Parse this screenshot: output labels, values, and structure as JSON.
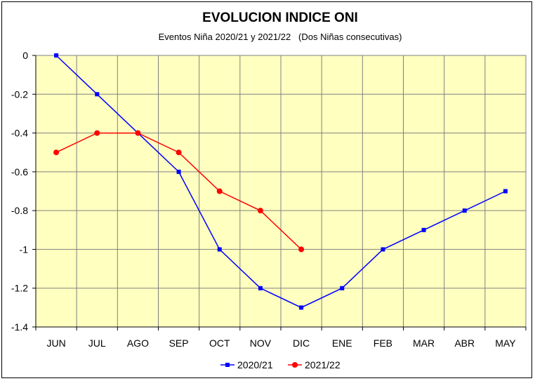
{
  "chart_data": {
    "type": "line",
    "title": "EVOLUCION INDICE ONI",
    "subtitle": "Eventos Niña 2020/21 y 2021/22   (Dos Niñas consecutivas)",
    "categories": [
      "JUN",
      "JUL",
      "AGO",
      "SEP",
      "OCT",
      "NOV",
      "DIC",
      "ENE",
      "FEB",
      "MAR",
      "ABR",
      "MAY"
    ],
    "series": [
      {
        "name": "2020/21",
        "color": "#0000ff",
        "marker": "square",
        "values": [
          0,
          -0.2,
          -0.4,
          -0.6,
          -1,
          -1.2,
          -1.3,
          -1.2,
          -1,
          -0.9,
          -0.8,
          -0.7
        ]
      },
      {
        "name": "2021/22",
        "color": "#ff0000",
        "marker": "circle",
        "values": [
          -0.5,
          -0.4,
          -0.4,
          -0.5,
          -0.7,
          -0.8,
          -1,
          null,
          null,
          null,
          null,
          null
        ]
      }
    ],
    "ylim": [
      -1.4,
      0
    ],
    "yticks": [
      "0",
      "-0.2",
      "-0.4",
      "-0.6",
      "-0.8",
      "-1",
      "-1.2",
      "-1.4"
    ],
    "ytick_values": [
      0,
      -0.2,
      -0.4,
      -0.6,
      -0.8,
      -1,
      -1.2,
      -1.4
    ],
    "plot_background": "#ffffc0",
    "grid": true,
    "legend": "bottom-center"
  }
}
